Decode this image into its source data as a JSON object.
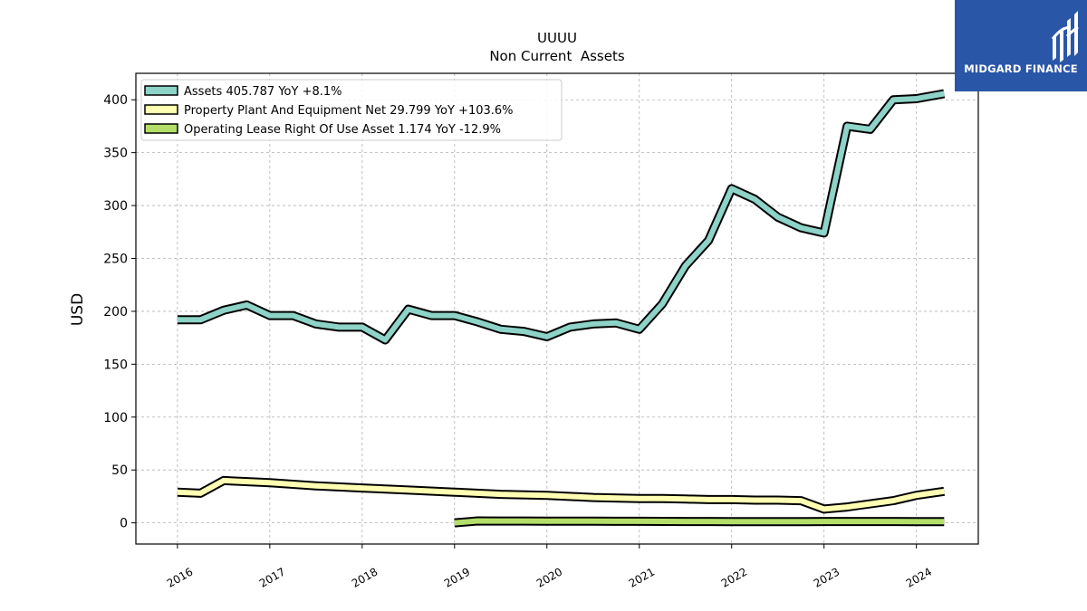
{
  "brand": {
    "name": "MIDGARD FINANCE",
    "bg_color": "#2a56a8"
  },
  "chart_data": {
    "type": "line",
    "title": "UUUU",
    "subtitle": "Non Current  Assets",
    "xlabel": "",
    "ylabel": "USD",
    "xlim": [
      2015.55,
      2024.67
    ],
    "ylim": [
      -20,
      425
    ],
    "yticks": [
      0,
      50,
      100,
      150,
      200,
      250,
      300,
      350,
      400
    ],
    "xticks": [
      "2016",
      "2017",
      "2018",
      "2019",
      "2020",
      "2021",
      "2022",
      "2023",
      "2024"
    ],
    "grid": true,
    "legend_position": "top-left",
    "series": [
      {
        "name": "Assets  405.787 YoY +8.1%",
        "color": "#8dd3c7",
        "x": [
          2016.0,
          2016.25,
          2016.5,
          2016.75,
          2017.0,
          2017.25,
          2017.5,
          2017.75,
          2018.0,
          2018.25,
          2018.5,
          2018.75,
          2019.0,
          2019.25,
          2019.5,
          2019.75,
          2020.0,
          2020.25,
          2020.5,
          2020.75,
          2021.0,
          2021.25,
          2021.5,
          2021.75,
          2022.0,
          2022.25,
          2022.5,
          2022.75,
          2023.0,
          2023.25,
          2023.5,
          2023.75,
          2024.0,
          2024.3
        ],
        "values": [
          192,
          192,
          201,
          206,
          196,
          196,
          188,
          185,
          185,
          173,
          202,
          196,
          196,
          190,
          183,
          181,
          176,
          185,
          188,
          189,
          183,
          207,
          243,
          267,
          316,
          306,
          289,
          279,
          274,
          375,
          372,
          400,
          401,
          405.787
        ]
      },
      {
        "name": "Property Plant And Equipment Net  29.799 YoY +103.6%",
        "color": "#ffffb3",
        "x": [
          2016.0,
          2016.25,
          2016.5,
          2017.0,
          2017.5,
          2018.0,
          2018.5,
          2019.0,
          2019.5,
          2020.0,
          2020.5,
          2021.0,
          2021.25,
          2021.5,
          2021.75,
          2022.0,
          2022.25,
          2022.5,
          2022.75,
          2023.0,
          2023.25,
          2023.5,
          2023.75,
          2024.0,
          2024.3
        ],
        "values": [
          29,
          28,
          40,
          38,
          35,
          33,
          31,
          29,
          27,
          26,
          24,
          23,
          23,
          22.5,
          22,
          22,
          21.5,
          21.5,
          21,
          13,
          15,
          18,
          21,
          26,
          29.799
        ]
      },
      {
        "name": "Operating Lease Right Of Use Asset  1.174 YoY -12.9%",
        "color": "#b3de69",
        "x": [
          2019.0,
          2019.25,
          2019.5,
          2019.75,
          2020.0,
          2020.25,
          2020.5,
          2020.75,
          2021.0,
          2021.25,
          2021.5,
          2021.75,
          2022.0,
          2022.25,
          2022.5,
          2022.75,
          2023.0,
          2023.25,
          2023.5,
          2023.75,
          2024.0,
          2024.3
        ],
        "values": [
          0,
          1.8,
          1.75,
          1.7,
          1.65,
          1.6,
          1.55,
          1.5,
          1.45,
          1.4,
          1.35,
          1.3,
          1.25,
          1.2,
          1.15,
          1.1,
          1.35,
          1.35,
          1.3,
          1.28,
          1.25,
          1.174
        ]
      }
    ]
  }
}
